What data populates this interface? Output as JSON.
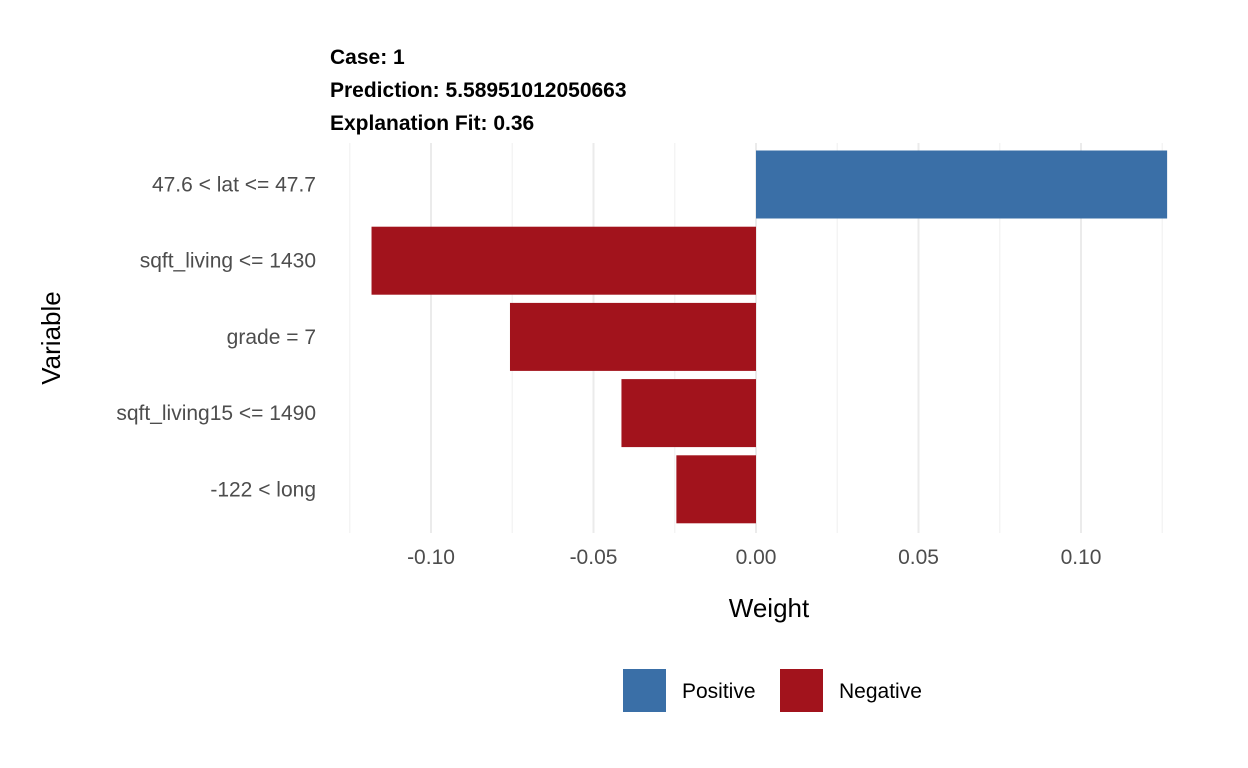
{
  "chart_data": {
    "type": "bar",
    "orientation": "horizontal",
    "title_lines": [
      "Case: 1",
      "Prediction: 5.58951012050663",
      "Explanation Fit: 0.36"
    ],
    "xlabel": "Weight",
    "ylabel": "Variable",
    "xlim": [
      -0.125,
      0.126
    ],
    "x_ticks": [
      -0.1,
      -0.05,
      0.0,
      0.05,
      0.1
    ],
    "x_tick_labels": [
      "-0.10",
      "-0.05",
      "0.00",
      "0.05",
      "0.10"
    ],
    "grid": true,
    "categories": [
      "47.6 < lat <= 47.7",
      "sqft_living <= 1430",
      "grade = 7",
      "sqft_living15 <= 1490",
      "-122 < long"
    ],
    "values": [
      0.1265,
      -0.1183,
      -0.0757,
      -0.0414,
      -0.0245
    ],
    "legend": {
      "position": "bottom",
      "entries": [
        {
          "label": "Positive",
          "color": "#3a6fa7"
        },
        {
          "label": "Negative",
          "color": "#a2131c"
        }
      ]
    }
  }
}
